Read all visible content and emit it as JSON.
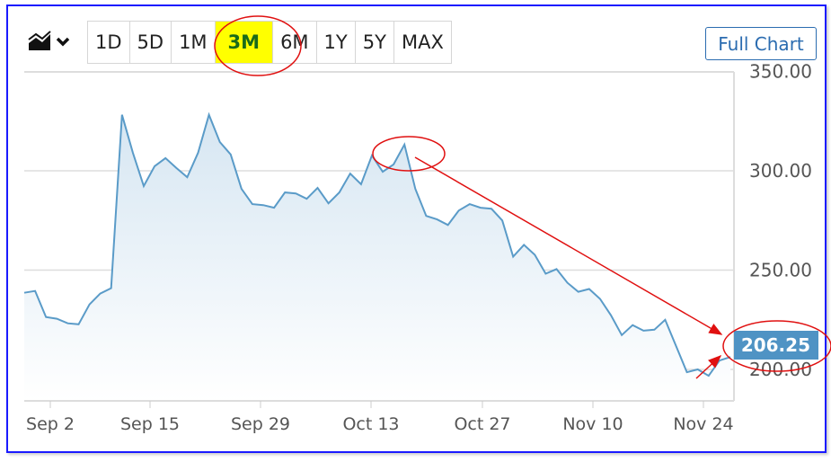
{
  "toolbar": {
    "chart_type_icon": "area-chart-icon",
    "ranges": [
      "1D",
      "5D",
      "1M",
      "3M",
      "6M",
      "1Y",
      "5Y",
      "MAX"
    ],
    "active_range": "3M",
    "full_chart_label": "Full Chart"
  },
  "colors": {
    "line": "#5a9bc8",
    "price_tag": "#4f93c4",
    "highlight": "#ffff00",
    "annotation": "#e01010"
  },
  "chart_data": {
    "type": "area",
    "ylim": [
      180,
      350
    ],
    "y_ticks": [
      "350.00",
      "300.00",
      "250.00",
      "200.00"
    ],
    "x_ticks": [
      "Sep 2",
      "Sep 15",
      "Sep 29",
      "Oct 13",
      "Oct 27",
      "Nov 10",
      "Nov 24"
    ],
    "values": [
      238.6,
      239.5,
      226.4,
      225.5,
      223.2,
      222.7,
      232.7,
      238.2,
      240.9,
      328.2,
      309.1,
      292.3,
      302.3,
      306.4,
      301.4,
      296.8,
      309.1,
      328.2,
      314.5,
      308.2,
      290.9,
      283.2,
      282.7,
      281.4,
      289.1,
      288.6,
      285.9,
      291.4,
      283.6,
      289.1,
      298.6,
      293.2,
      307.7,
      299.5,
      303.2,
      313.2,
      290.9,
      277.3,
      275.5,
      272.7,
      280,
      283.2,
      281.4,
      280.9,
      275,
      256.8,
      262.7,
      257.7,
      248.2,
      250.5,
      243.6,
      239.1,
      240.5,
      235.5,
      227.3,
      217.3,
      222.3,
      219.5,
      220,
      225,
      211.8,
      198.6,
      200,
      196.8,
      204.5,
      206.25
    ],
    "last_price": "206.25",
    "grid": true
  }
}
